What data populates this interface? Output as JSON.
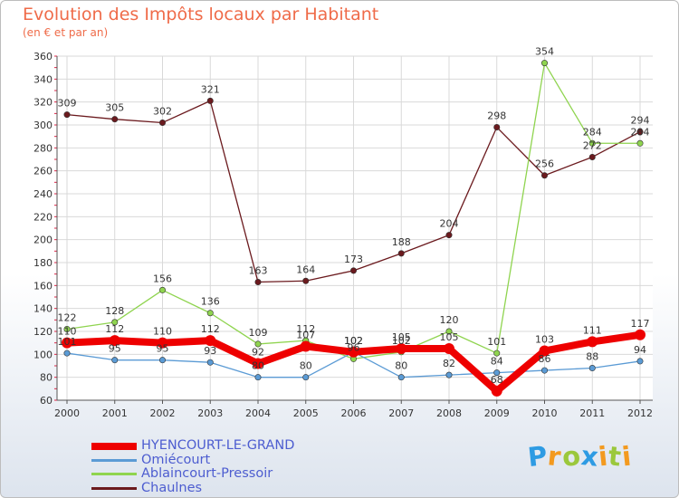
{
  "chart_data": {
    "type": "line",
    "title": "Evolution des Impôts locaux par Habitant",
    "subtitle": "(en € et par an)",
    "xlabel": "",
    "ylabel": "",
    "ylim": [
      60,
      360
    ],
    "yticks": [
      60,
      80,
      100,
      120,
      140,
      160,
      180,
      200,
      220,
      240,
      260,
      280,
      300,
      320,
      340,
      360
    ],
    "categories": [
      "2000",
      "2001",
      "2002",
      "2003",
      "2004",
      "2005",
      "2006",
      "2007",
      "2008",
      "2009",
      "2010",
      "2011",
      "2012"
    ],
    "series": [
      {
        "name": "HYENCOURT-LE-GRAND",
        "color": "#ee0000",
        "values": [
          110,
          112,
          110,
          112,
          92,
          107,
          102,
          105,
          105,
          68,
          103,
          111,
          117
        ]
      },
      {
        "name": "Omiécourt",
        "color": "#5b9bd5",
        "values": [
          101,
          95,
          95,
          93,
          80,
          80,
          102,
          80,
          82,
          84,
          86,
          88,
          94
        ]
      },
      {
        "name": "Ablaincourt-Pressoir",
        "color": "#8fd44f",
        "values": [
          122,
          128,
          156,
          136,
          109,
          112,
          96,
          102,
          120,
          101,
          354,
          284,
          284
        ]
      },
      {
        "name": "Chaulnes",
        "color": "#6b1a1e",
        "values": [
          309,
          305,
          302,
          321,
          163,
          164,
          173,
          188,
          204,
          298,
          256,
          272,
          294
        ]
      }
    ],
    "legend_position": "bottom-left",
    "grid": true
  },
  "brand": {
    "letters": [
      "P",
      "r",
      "o",
      "x",
      "i",
      "t",
      "i"
    ],
    "colors": [
      "#2e9be3",
      "#f39a1f",
      "#9bc83c",
      "#2e9be3",
      "#f39a1f",
      "#9bc83c",
      "#f39a1f"
    ]
  }
}
